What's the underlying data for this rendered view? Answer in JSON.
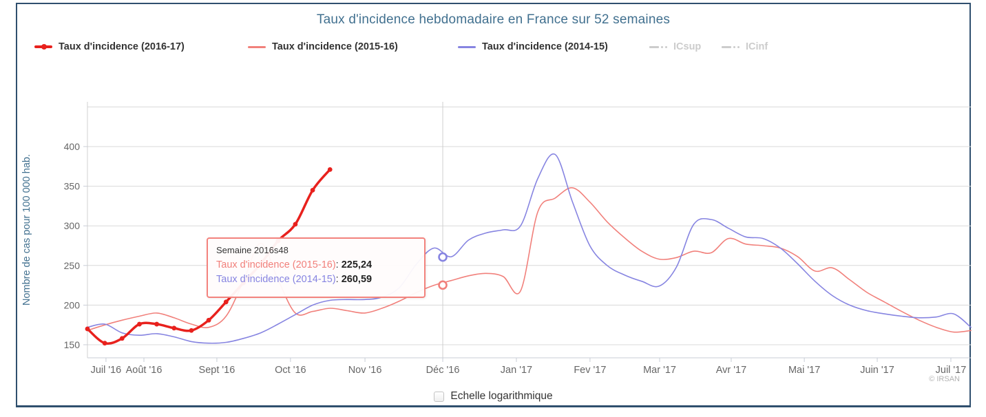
{
  "header": {
    "title": "Taux d'incidence hebdomadaire en France sur 52 semaines"
  },
  "legend": {
    "items": [
      {
        "label": "Taux d'incidence (2016-17)",
        "color": "#e8211d",
        "type": "line-marker",
        "enabled": true
      },
      {
        "label": "Taux d'incidence (2015-16)",
        "color": "#f1807b",
        "type": "line",
        "enabled": true
      },
      {
        "label": "Taux d'incidence (2014-15)",
        "color": "#8684e1",
        "type": "line",
        "enabled": true
      },
      {
        "label": "ICsup",
        "color": "#cccccc",
        "type": "dash-dot",
        "enabled": false
      },
      {
        "label": "ICinf",
        "color": "#cccccc",
        "type": "dash-dot",
        "enabled": false
      }
    ]
  },
  "tooltip": {
    "header": "Semaine 2016s48",
    "rows": [
      {
        "label": "Taux d'incidence (2015-16)",
        "value": "225,24",
        "color": "#f1807b"
      },
      {
        "label": "Taux d'incidence (2014-15)",
        "value": "260,59",
        "color": "#8684e1"
      }
    ]
  },
  "controls": {
    "log_checkbox_label": "Echelle logarithmique",
    "checked": false
  },
  "credit": "© IRSAN",
  "chart_data": {
    "type": "line",
    "title": "Taux d'incidence hebdomadaire en France sur 52 semaines",
    "ylabel": "Nombre de cas pour 100 000 hab.",
    "xlabel": "",
    "y_ticks": [
      150,
      200,
      250,
      300,
      350,
      400
    ],
    "y_grid_extra": [
      450
    ],
    "ylim": [
      130,
      460
    ],
    "grid": true,
    "legend_position": "top",
    "x_unit": "weeks (52 semaines, juillet 2016 - juillet 2017)",
    "x_ticks": [
      {
        "label": "Juil '16",
        "w": 1.07
      },
      {
        "label": "Août '16",
        "w": 3.26
      },
      {
        "label": "Sept '16",
        "w": 7.47
      },
      {
        "label": "Oct '16",
        "w": 11.72
      },
      {
        "label": "Nov '16",
        "w": 16.02
      },
      {
        "label": "Déc '16",
        "w": 20.51
      },
      {
        "label": "Jan '17",
        "w": 24.76
      },
      {
        "label": "Fev '17",
        "w": 29.01
      },
      {
        "label": "Mar '17",
        "w": 33.03
      },
      {
        "label": "Avr '17",
        "w": 37.16
      },
      {
        "label": "Mai '17",
        "w": 41.38
      },
      {
        "label": "Juin '17",
        "w": 45.59
      },
      {
        "label": "Juil '17",
        "w": 49.84
      }
    ],
    "series": [
      {
        "name": "Taux d'incidence (2016-17)",
        "color": "#e8211d",
        "line_width": 3.5,
        "markers": true,
        "start_week": 0,
        "values": [
          170,
          152,
          158,
          176,
          176,
          171,
          168,
          181,
          204,
          228,
          252,
          281,
          302,
          345,
          371
        ]
      },
      {
        "name": "Taux d'incidence (2015-16)",
        "color": "#f1807b",
        "line_width": 1.6,
        "markers": false,
        "start_week": 0,
        "values": [
          168,
          175,
          181,
          186,
          190,
          184,
          176,
          172,
          186,
          230,
          278,
          232,
          190,
          192,
          196,
          193,
          190,
          196,
          205,
          216,
          225,
          231,
          237,
          240,
          236,
          218,
          318,
          335,
          348,
          330,
          305,
          285,
          268,
          258,
          260,
          268,
          266,
          284,
          277,
          275,
          272,
          261,
          243,
          247,
          232,
          216,
          204,
          192,
          181,
          172,
          166,
          168
        ]
      },
      {
        "name": "Taux d'incidence (2014-15)",
        "color": "#8684e1",
        "line_width": 1.6,
        "markers": false,
        "start_week": 0,
        "values": [
          172,
          176,
          165,
          162,
          164,
          160,
          154,
          152,
          153,
          158,
          165,
          176,
          188,
          200,
          206,
          207,
          207,
          210,
          222,
          252,
          272,
          261,
          282,
          291,
          295,
          300,
          360,
          390,
          330,
          275,
          250,
          238,
          230,
          224,
          248,
          302,
          308,
          297,
          286,
          284,
          272,
          252,
          230,
          212,
          200,
          193,
          189,
          186,
          184,
          185,
          189,
          172
        ]
      },
      {
        "name": "ICsup",
        "color": "#cccccc",
        "visible": false,
        "values": []
      },
      {
        "name": "ICinf",
        "color": "#cccccc",
        "visible": false,
        "values": []
      }
    ],
    "hover": {
      "header": "Semaine 2016s48",
      "week": 20.51,
      "points": [
        {
          "series": "Taux d'incidence (2015-16)",
          "value": 225.24,
          "display": "225,24",
          "color": "#f1807b"
        },
        {
          "series": "Taux d'incidence (2014-15)",
          "value": 260.59,
          "display": "260,59",
          "color": "#8684e1"
        }
      ]
    }
  }
}
